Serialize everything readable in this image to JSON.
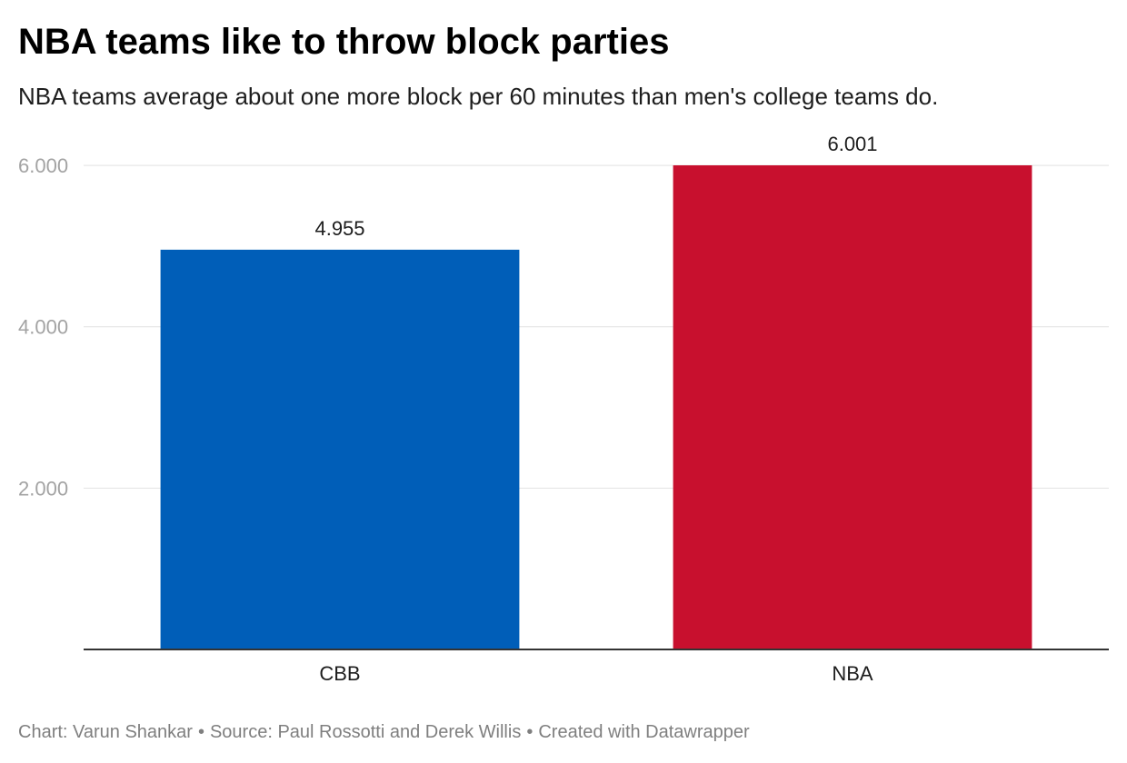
{
  "title": "NBA teams like to throw block parties",
  "subtitle": "NBA teams average about one more block per 60 minutes than men's college teams do.",
  "footer": {
    "chart_credit": "Chart: Varun Shankar",
    "source": "Source: Paul Rossotti and Derek Willis",
    "created_with": "Created with Datawrapper",
    "separator": "•"
  },
  "chart_data": {
    "type": "bar",
    "categories": [
      "CBB",
      "NBA"
    ],
    "values": [
      4.955,
      6.001
    ],
    "value_labels": [
      "4.955",
      "6.001"
    ],
    "colors": [
      "#005eb8",
      "#c8102e"
    ],
    "title": "NBA teams like to throw block parties",
    "subtitle": "NBA teams average about one more block per 60 minutes than men's college teams do.",
    "xlabel": "",
    "ylabel": "",
    "ylim": [
      0,
      6.001
    ],
    "yticks": [
      2,
      4,
      6
    ],
    "ytick_labels": [
      "2.000",
      "4.000",
      "6.000"
    ],
    "grid": true,
    "legend": "none"
  }
}
